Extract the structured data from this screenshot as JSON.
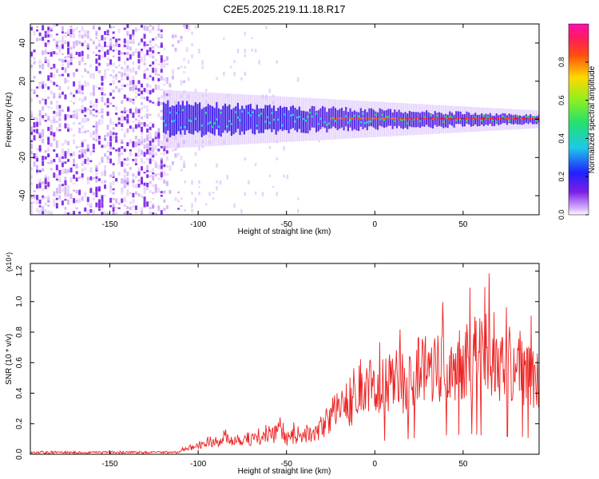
{
  "title": "C2E5.2025.219.11.18.R17",
  "colors": {
    "snr_line": "#ee2222",
    "spectrum_low": "#7b1fe6",
    "spectrum_mid": "#1ec8e8",
    "spectrum_high": "#ff1a1a",
    "background": "#ffffff"
  },
  "chart_data": [
    {
      "type": "heatmap",
      "title": "C2E5.2025.219.11.18.R17",
      "xlabel": "Height of straight line (km)",
      "ylabel": "Frequency (Hz)",
      "xlim": [
        -195,
        93
      ],
      "ylim": [
        -50,
        50
      ],
      "xticks": [
        -150,
        -100,
        -50,
        0,
        50
      ],
      "yticks": [
        -40,
        -20,
        0,
        20,
        40
      ],
      "grid": false,
      "colorbar": {
        "label": "Normalized spectral amplitude",
        "range": [
          0.0,
          1.0
        ],
        "ticks": [
          "0.0",
          "0.2",
          "0.4",
          "0.6",
          "0.8"
        ],
        "colormap": "rainbow (purple to red)"
      },
      "description_values": {
        "noise_region_x": [
          -195,
          -110
        ],
        "signal_center_frequency": 0,
        "signal_band_halfwidth_at_-110": 8,
        "signal_band_halfwidth_at_90": 2
      }
    },
    {
      "type": "line",
      "xlabel": "Height of straight line (km)",
      "ylabel": "SNR (10 * v/v)",
      "y_scale_note": "(x10⁴)",
      "xlim": [
        -195,
        93
      ],
      "ylim": [
        0,
        1.25
      ],
      "xticks": [
        -150,
        -100,
        -50,
        0,
        50
      ],
      "yticks": [
        "0.0",
        "0.2",
        "0.4",
        "0.6",
        "0.8",
        "1.0",
        "1.2"
      ],
      "grid": false,
      "series": [
        {
          "x": [
            -195,
            -180,
            -160,
            -140,
            -120,
            -110,
            -100,
            -90,
            -80,
            -70,
            -60,
            -55,
            -50,
            -45,
            -40,
            -35,
            -30,
            -25,
            -20,
            -15,
            -10,
            -5,
            0,
            5,
            10,
            15,
            20,
            25,
            30,
            35,
            40,
            45,
            50,
            55,
            60,
            65,
            70,
            75,
            80,
            85,
            90,
            93
          ],
          "values": [
            0.01,
            0.01,
            0.01,
            0.01,
            0.01,
            0.02,
            0.06,
            0.09,
            0.1,
            0.1,
            0.11,
            0.14,
            0.1,
            0.12,
            0.14,
            0.12,
            0.18,
            0.25,
            0.32,
            0.33,
            0.35,
            0.4,
            0.42,
            0.44,
            0.47,
            0.48,
            0.5,
            0.55,
            0.57,
            0.6,
            0.62,
            0.63,
            0.64,
            0.66,
            0.62,
            0.64,
            0.62,
            0.58,
            0.6,
            0.55,
            0.5,
            0.45
          ]
        }
      ]
    }
  ]
}
